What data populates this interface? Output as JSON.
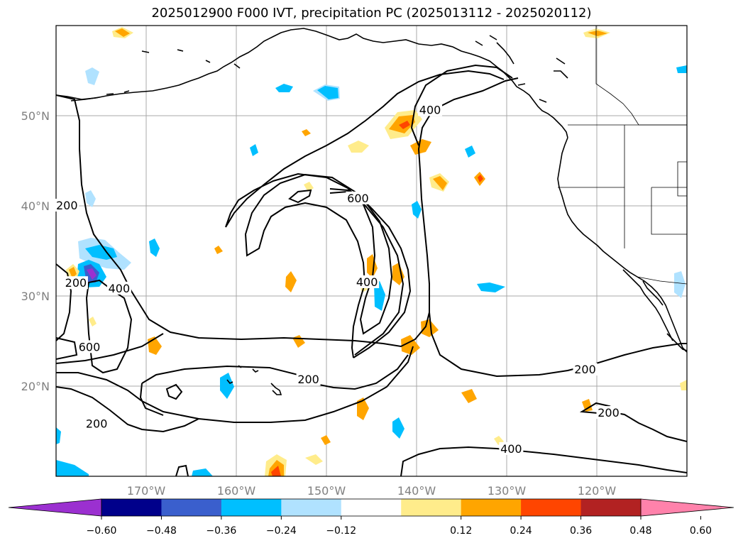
{
  "title": "2025012900 F000 IVT, precipitation PC (2025013112 - 2025020112)",
  "map": {
    "lon_range": [
      -180,
      -110
    ],
    "lat_range": [
      10,
      60
    ],
    "lat_labels": [
      "50°N",
      "40°N",
      "30°N",
      "20°N"
    ],
    "lon_labels": [
      "170°W",
      "160°W",
      "150°W",
      "140°W",
      "130°W",
      "120°W"
    ],
    "grid": true,
    "contour_levels": [
      "200",
      "400",
      "600"
    ],
    "contour_labels": [
      {
        "text": "400",
        "lon": -138.5,
        "lat": 50.6
      },
      {
        "text": "600",
        "lon": -146.5,
        "lat": 40.8
      },
      {
        "text": "200",
        "lon": -178.8,
        "lat": 40.0
      },
      {
        "text": "200",
        "lon": -177.8,
        "lat": 31.4
      },
      {
        "text": "400",
        "lon": -173.0,
        "lat": 30.8
      },
      {
        "text": "400",
        "lon": -145.5,
        "lat": 31.5
      },
      {
        "text": "600",
        "lon": -176.3,
        "lat": 24.3
      },
      {
        "text": "200",
        "lon": -152.0,
        "lat": 20.7
      },
      {
        "text": "200",
        "lon": -175.5,
        "lat": 15.8
      },
      {
        "text": "200",
        "lon": -121.3,
        "lat": 21.8
      },
      {
        "text": "200",
        "lon": -118.7,
        "lat": 17.0
      },
      {
        "text": "400",
        "lon": -129.5,
        "lat": 13.0
      }
    ]
  },
  "colorbar": {
    "ticks": [
      "−0.60",
      "−0.48",
      "−0.36",
      "−0.24",
      "−0.12",
      "0.12",
      "0.24",
      "0.36",
      "0.48",
      "0.60"
    ],
    "colors": [
      "#9b30d0",
      "#00008b",
      "#3a5fcd",
      "#00bfff",
      "#b0e2ff",
      "#ffffff",
      "#ffec8b",
      "#ffa500",
      "#ff4500",
      "#b22222",
      "#ff82ab"
    ]
  }
}
